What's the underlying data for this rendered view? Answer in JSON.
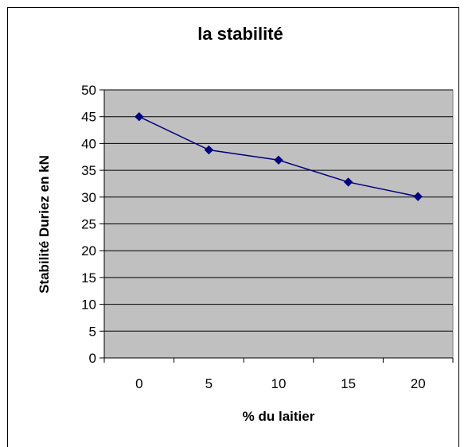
{
  "chart_data": {
    "type": "line",
    "title": "la stabilité",
    "xlabel": "% du laitier",
    "ylabel": "Stabilité Duriez en kN",
    "categories": [
      "0",
      "5",
      "10",
      "15",
      "20"
    ],
    "series": [
      {
        "values": [
          45,
          38.8,
          36.9,
          32.8,
          30.1
        ]
      }
    ],
    "ylim": [
      0,
      50
    ],
    "yticks": [
      0,
      5,
      10,
      15,
      20,
      25,
      30,
      35,
      40,
      45,
      50
    ],
    "grid": true,
    "legend": "none",
    "colors": {
      "plot_bg": "#c0c0c0",
      "line": "#000080",
      "marker": "#000080",
      "grid": "#000000"
    }
  }
}
